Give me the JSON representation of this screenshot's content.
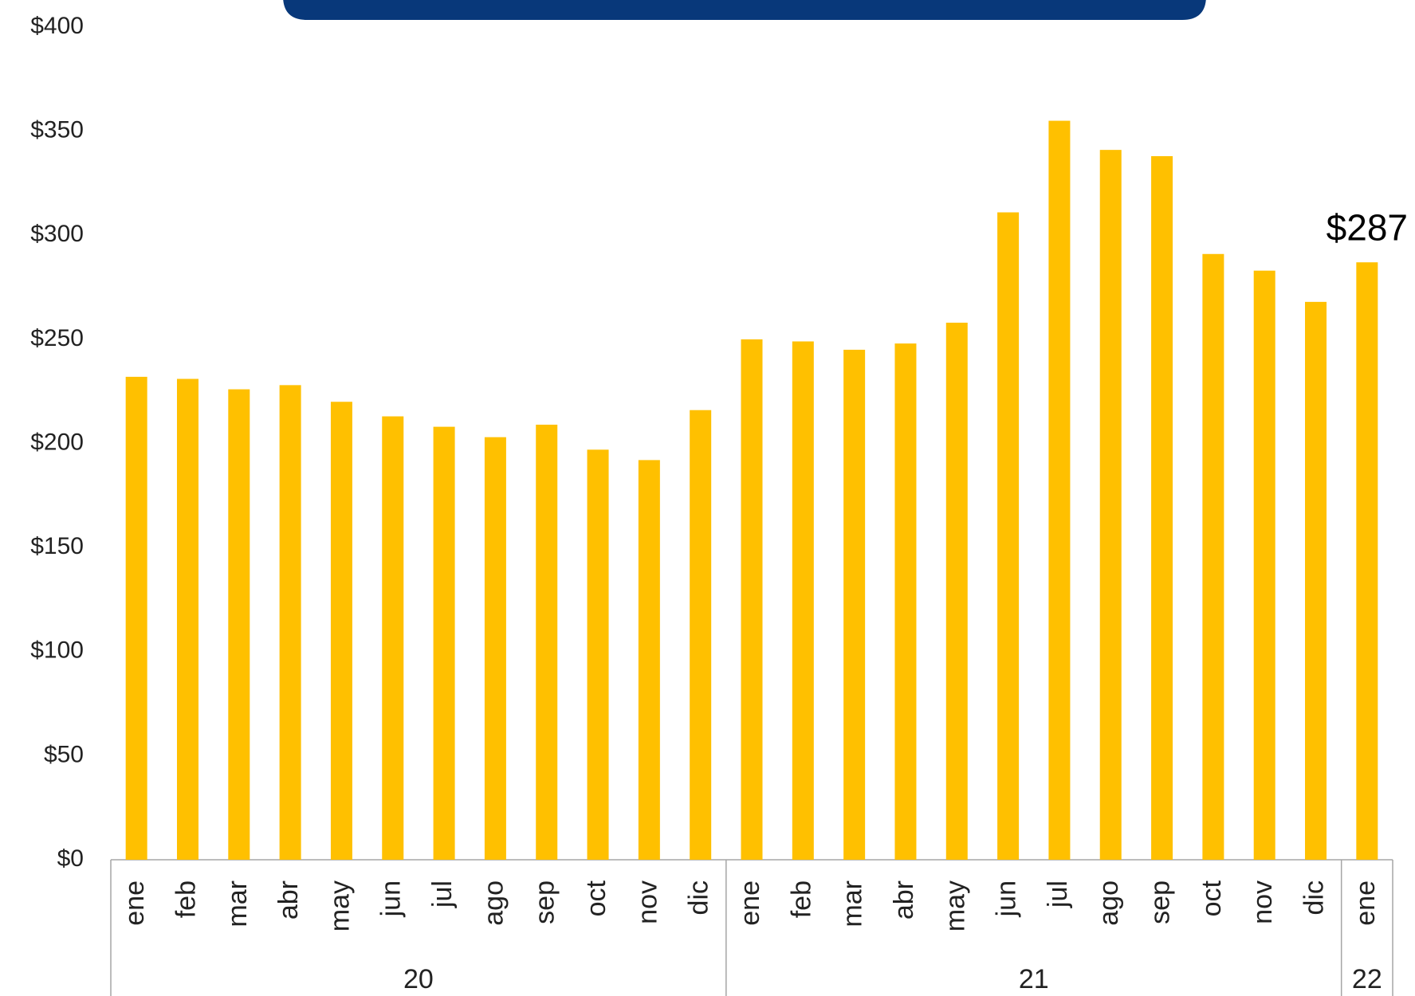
{
  "chart_data": {
    "type": "bar",
    "categories": [
      {
        "label": "ene",
        "group": "20"
      },
      {
        "label": "feb",
        "group": "20"
      },
      {
        "label": "mar",
        "group": "20"
      },
      {
        "label": "abr",
        "group": "20"
      },
      {
        "label": "may",
        "group": "20"
      },
      {
        "label": "jun",
        "group": "20"
      },
      {
        "label": "jul",
        "group": "20"
      },
      {
        "label": "ago",
        "group": "20"
      },
      {
        "label": "sep",
        "group": "20"
      },
      {
        "label": "oct",
        "group": "20"
      },
      {
        "label": "nov",
        "group": "20"
      },
      {
        "label": "dic",
        "group": "20"
      },
      {
        "label": "ene",
        "group": "21"
      },
      {
        "label": "feb",
        "group": "21"
      },
      {
        "label": "mar",
        "group": "21"
      },
      {
        "label": "abr",
        "group": "21"
      },
      {
        "label": "may",
        "group": "21"
      },
      {
        "label": "jun",
        "group": "21"
      },
      {
        "label": "jul",
        "group": "21"
      },
      {
        "label": "ago",
        "group": "21"
      },
      {
        "label": "sep",
        "group": "21"
      },
      {
        "label": "oct",
        "group": "21"
      },
      {
        "label": "nov",
        "group": "21"
      },
      {
        "label": "dic",
        "group": "21"
      },
      {
        "label": "ene",
        "group": "22"
      }
    ],
    "values": [
      232,
      231,
      226,
      228,
      220,
      213,
      208,
      203,
      209,
      197,
      192,
      216,
      250,
      249,
      245,
      248,
      258,
      311,
      355,
      341,
      338,
      291,
      283,
      268,
      287
    ],
    "value_labels": [
      null,
      null,
      null,
      null,
      null,
      null,
      null,
      null,
      null,
      null,
      null,
      null,
      null,
      null,
      null,
      null,
      null,
      null,
      null,
      null,
      null,
      null,
      null,
      null,
      "$287"
    ],
    "color": "#ffc000",
    "ylim": [
      0,
      400
    ],
    "yticks": [
      {
        "value": 0,
        "label": "$0"
      },
      {
        "value": 50,
        "label": "$50"
      },
      {
        "value": 100,
        "label": "$100"
      },
      {
        "value": 150,
        "label": "$150"
      },
      {
        "value": 200,
        "label": "$200"
      },
      {
        "value": 250,
        "label": "$250"
      },
      {
        "value": 300,
        "label": "$300"
      },
      {
        "value": 350,
        "label": "$350"
      },
      {
        "value": 400,
        "label": "$400"
      }
    ],
    "grid": false
  }
}
